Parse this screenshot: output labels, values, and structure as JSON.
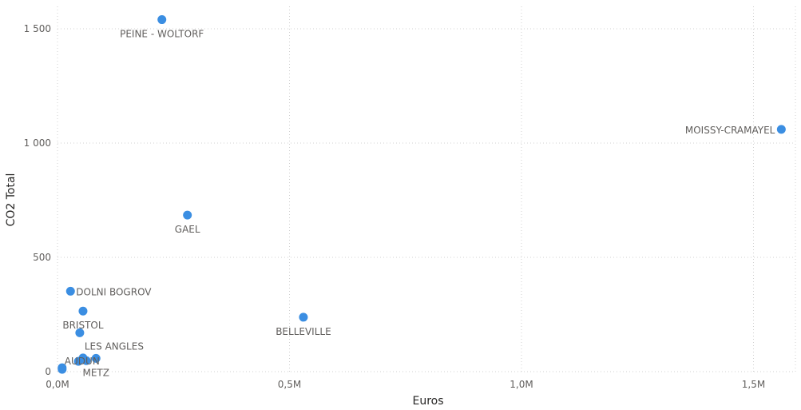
{
  "chart_data": {
    "type": "scatter",
    "title": "",
    "xlabel": "Euros",
    "ylabel": "CO2 Total",
    "xlim": [
      0,
      1600000
    ],
    "ylim": [
      0,
      1500
    ],
    "grid": true,
    "point_color": "#3b8ee2",
    "x_ticks": [
      {
        "value": 0,
        "label": "0,0M"
      },
      {
        "value": 500000,
        "label": "0,5M"
      },
      {
        "value": 1000000,
        "label": "1,0M"
      },
      {
        "value": 1500000,
        "label": "1,5M"
      }
    ],
    "y_ticks": [
      {
        "value": 0,
        "label": "0"
      },
      {
        "value": 500,
        "label": "500"
      },
      {
        "value": 1000,
        "label": "1 000"
      },
      {
        "value": 1500,
        "label": "1 500"
      }
    ],
    "points": [
      {
        "label": "PEINE - WOLTORF",
        "x": 225000,
        "y": 1540,
        "label_pos": "below"
      },
      {
        "label": "MOISSY-CRAMAYEL",
        "x": 1560000,
        "y": 1060,
        "label_pos": "left"
      },
      {
        "label": "GAEL",
        "x": 280000,
        "y": 685,
        "label_pos": "below"
      },
      {
        "label": "DOLNI BOGROV",
        "x": 28000,
        "y": 352,
        "label_pos": "right"
      },
      {
        "label": "BRISTOL",
        "x": 55000,
        "y": 265,
        "label_pos": "below"
      },
      {
        "label": "BELLEVILLE",
        "x": 530000,
        "y": 238,
        "label_pos": "below"
      },
      {
        "label": "LES ANGLES",
        "x": 48000,
        "y": 170,
        "label_pos": "below-right"
      },
      {
        "label": "AUDUN",
        "x": 10000,
        "y": 17,
        "label_pos": "above-right"
      },
      {
        "label": "METZ",
        "x": 83000,
        "y": 58,
        "label_pos": "below"
      },
      {
        "label": "",
        "x": 10000,
        "y": 10
      },
      {
        "label": "",
        "x": 45000,
        "y": 45
      },
      {
        "label": "",
        "x": 55000,
        "y": 60
      },
      {
        "label": "",
        "x": 62000,
        "y": 48
      }
    ]
  }
}
